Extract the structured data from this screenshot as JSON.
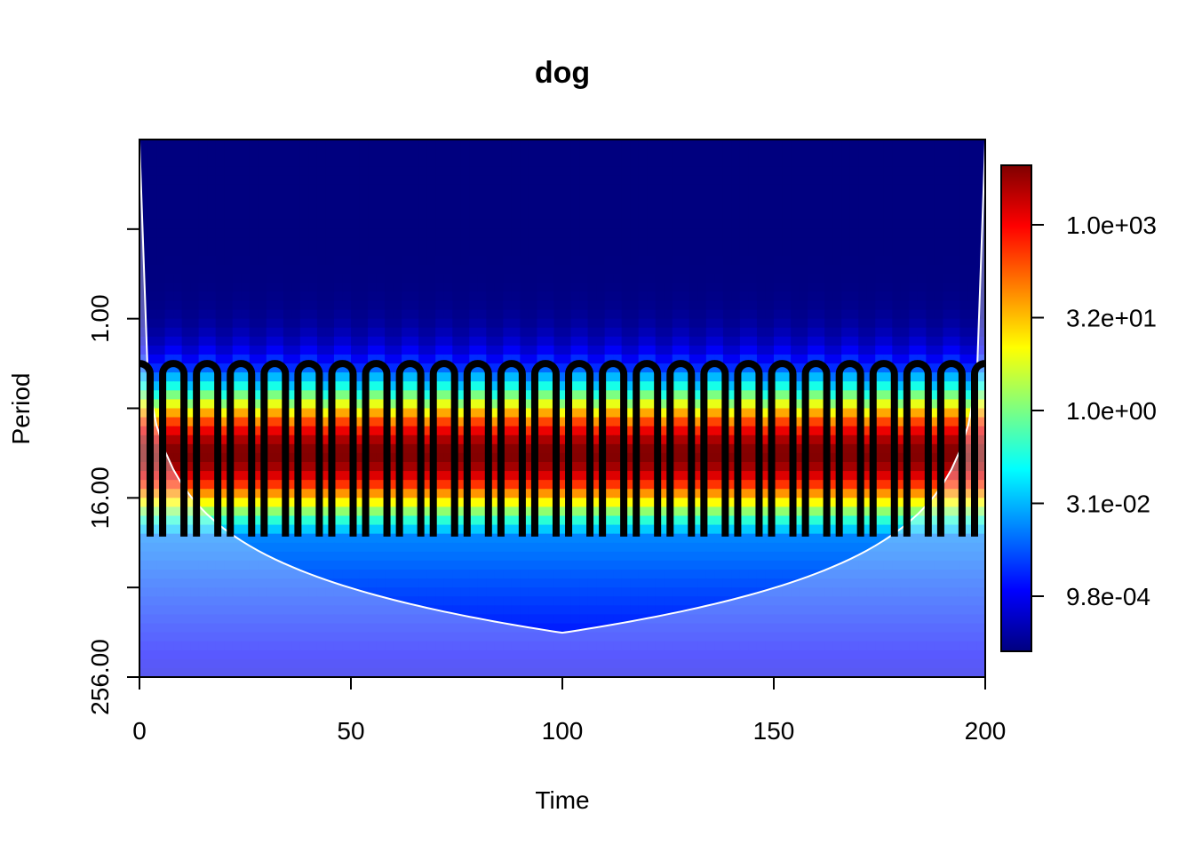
{
  "chart_data": {
    "type": "heatmap",
    "title": "dog",
    "xlabel": "Time",
    "ylabel": "Period",
    "x_ticks": [
      "0",
      "50",
      "100",
      "150",
      "200"
    ],
    "x_tick_values": [
      0,
      50,
      100,
      150,
      200
    ],
    "xlim": [
      0,
      200
    ],
    "y_ticks": [
      "1.00",
      "16.00",
      "256.00"
    ],
    "y_tick_values": [
      1,
      16,
      256
    ],
    "y_scale": "log2",
    "y_reversed": true,
    "ylim": [
      0.0625,
      256
    ],
    "colorbar": {
      "scale": "log",
      "labels": [
        "1.0e+03",
        "3.2e+01",
        "1.0e+00",
        "3.1e-02",
        "9.8e-04"
      ],
      "colors": [
        "#00007f",
        "#0000ff",
        "#007fff",
        "#00ffff",
        "#7fff7f",
        "#ffff00",
        "#ff7f00",
        "#ff0000",
        "#7f0000"
      ]
    },
    "significance_contour_color": "#000000",
    "cone_of_influence_color": "#ffffff",
    "signal_period_approx": 8,
    "dominant_band_period_range": [
      2,
      64
    ]
  }
}
